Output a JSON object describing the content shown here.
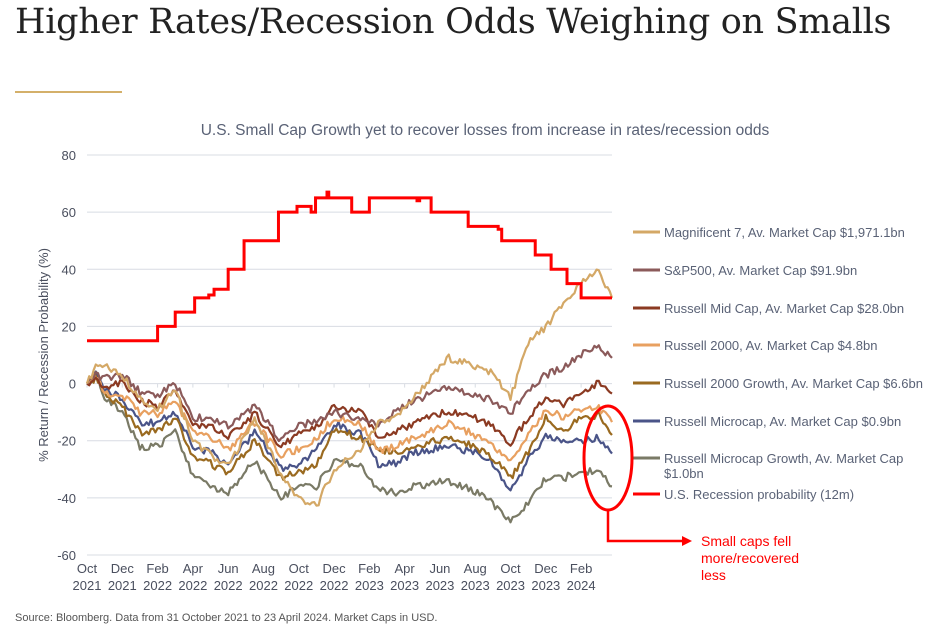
{
  "header": {
    "title": "Higher Rates/Recession Odds Weighing on Smalls"
  },
  "footer": {
    "source": "Source: Bloomberg. Data from 31 October 2021 to 23 April 2024. Market Caps in USD."
  },
  "annotation": {
    "lines": [
      "Small caps fell",
      "more/recovered",
      "less"
    ]
  },
  "chart_data": {
    "type": "line",
    "title": "U.S. Small Cap Growth yet to recover losses from increase in rates/recession odds",
    "ylabel": "% Return / Recession Probability (%)",
    "xlabel": "",
    "ylim": [
      -60,
      80
    ],
    "yticks": [
      80,
      60,
      40,
      20,
      0,
      -20,
      -40,
      -60
    ],
    "x_unit": "months since 31 Oct 2021",
    "xlim": [
      0,
      29.75
    ],
    "xticks": [
      {
        "t": 0,
        "l1": "Oct",
        "l2": "2021"
      },
      {
        "t": 2,
        "l1": "Dec",
        "l2": "2021"
      },
      {
        "t": 4,
        "l1": "Feb",
        "l2": "2022"
      },
      {
        "t": 6,
        "l1": "Apr",
        "l2": "2022"
      },
      {
        "t": 8,
        "l1": "Jun",
        "l2": "2022"
      },
      {
        "t": 10,
        "l1": "Aug",
        "l2": "2022"
      },
      {
        "t": 12,
        "l1": "Oct",
        "l2": "2022"
      },
      {
        "t": 14,
        "l1": "Dec",
        "l2": "2022"
      },
      {
        "t": 16,
        "l1": "Feb",
        "l2": "2023"
      },
      {
        "t": 18,
        "l1": "Apr",
        "l2": "2023"
      },
      {
        "t": 20,
        "l1": "Jun",
        "l2": "2023"
      },
      {
        "t": 22,
        "l1": "Aug",
        "l2": "2023"
      },
      {
        "t": 24,
        "l1": "Oct",
        "l2": "2023"
      },
      {
        "t": 26,
        "l1": "Dec",
        "l2": "2023"
      },
      {
        "t": 28,
        "l1": "Feb",
        "l2": "2024"
      }
    ],
    "grid": true,
    "legend_position": "right",
    "x": [
      0,
      0.5,
      1,
      2,
      3,
      4,
      5,
      6,
      7,
      8,
      9.5,
      11,
      12,
      13,
      14,
      15.5,
      16.5,
      17.5,
      18.5,
      20.5,
      22,
      23,
      24,
      25,
      26,
      27,
      28,
      29,
      29.75
    ],
    "series": [
      {
        "name": "Magnificent 7, Av. Market Cap $1,971.1bn",
        "color": "#D4A866",
        "values": [
          0,
          6,
          6,
          3,
          -5,
          -9,
          -2,
          -20,
          -25,
          -29,
          -12,
          -32,
          -40,
          -43,
          -30,
          -23,
          -14,
          -12,
          -5,
          9,
          6,
          4,
          -5,
          14,
          20,
          28,
          35,
          40,
          30
        ]
      },
      {
        "name": "S&P500, Av. Market Cap $91.9bn",
        "color": "#8B5A5A",
        "values": [
          0,
          3,
          2,
          3,
          -3,
          -4,
          0,
          -12,
          -12,
          -15,
          -7.7,
          -20,
          -15,
          -13,
          -10,
          -13,
          -14,
          -10,
          -6,
          -1.5,
          -4,
          -6,
          -10.5,
          -2,
          3,
          5.6,
          10,
          13,
          9
        ]
      },
      {
        "name": "Russell Mid Cap, Av. Market Cap $28.0bn",
        "color": "#8B3A22",
        "values": [
          0,
          2,
          -1,
          0,
          -6,
          -8,
          -3,
          -14,
          -15,
          -19,
          -10.5,
          -22,
          -17.5,
          -15,
          -8,
          -10,
          -19,
          -17,
          -14,
          -9.5,
          -12,
          -15,
          -21,
          -12,
          -5,
          -7.7,
          -3,
          0.3,
          -3.5
        ]
      },
      {
        "name": "Russell 2000, Av. Market Cap $4.8bn",
        "color": "#E8A060",
        "values": [
          0,
          3,
          -3,
          -4,
          -10,
          -10.5,
          -6,
          -17,
          -19,
          -23,
          -13.5,
          -25,
          -23,
          -19,
          -12,
          -14,
          -23.5,
          -22,
          -19,
          -14,
          -18,
          -22,
          -28,
          -18,
          -9,
          -11.8,
          -9,
          -8.4,
          -13.5
        ]
      },
      {
        "name": "Russell 2000 Growth, Av. Market Cap $6.6bn",
        "color": "#9A6A20",
        "values": [
          0,
          2,
          -4,
          -8,
          -17,
          -16.5,
          -12,
          -25,
          -28,
          -31.5,
          -20,
          -33,
          -31,
          -28,
          -16,
          -19,
          -23,
          -24,
          -22,
          -19,
          -22,
          -26,
          -33,
          -24,
          -12,
          -16.5,
          -12,
          -11,
          -18
        ]
      },
      {
        "name": "Russell Microcap, Av. Market Cap $0.9bn",
        "color": "#4A5488",
        "values": [
          0,
          3,
          -2,
          -5,
          -14,
          -13.6,
          -10,
          -22,
          -24,
          -28,
          -17,
          -30,
          -28,
          -23.5,
          -14,
          -17.5,
          -28,
          -28,
          -24,
          -22,
          -24,
          -28,
          -37.5,
          -27,
          -18,
          -20.6,
          -20,
          -19,
          -24.5
        ]
      },
      {
        "name": "Russell Microcap Growth, Av. Market Cap",
        "name_line2": "$1.0bn",
        "color": "#7A7A66",
        "values": [
          0,
          4,
          -5,
          -10,
          -22,
          -22,
          -17,
          -32,
          -36,
          -38,
          -27,
          -40,
          -36,
          -36,
          -27,
          -29,
          -37,
          -38,
          -36,
          -34,
          -38,
          -42,
          -48,
          -42,
          -33,
          -33,
          -31,
          -30,
          -36
        ]
      }
    ],
    "recession": {
      "name": "U.S. Recession probability (12m)",
      "color": "#FF0000",
      "step": true,
      "steps": [
        [
          0,
          15
        ],
        [
          4.0,
          20
        ],
        [
          5.0,
          25
        ],
        [
          6.1,
          30
        ],
        [
          6.9,
          31
        ],
        [
          7.2,
          33
        ],
        [
          8.0,
          40
        ],
        [
          8.9,
          50
        ],
        [
          10.85,
          60
        ],
        [
          11.9,
          62
        ],
        [
          12.7,
          60
        ],
        [
          12.95,
          65
        ],
        [
          13.6,
          67
        ],
        [
          13.7,
          65
        ],
        [
          15.0,
          60
        ],
        [
          16.0,
          65
        ],
        [
          18.7,
          64
        ],
        [
          18.85,
          65
        ],
        [
          19.5,
          60
        ],
        [
          21.6,
          55
        ],
        [
          23.3,
          54
        ],
        [
          23.5,
          50
        ],
        [
          25.4,
          45
        ],
        [
          26.3,
          40
        ],
        [
          27.2,
          35
        ],
        [
          28.0,
          30
        ]
      ],
      "end": 29.75
    }
  }
}
